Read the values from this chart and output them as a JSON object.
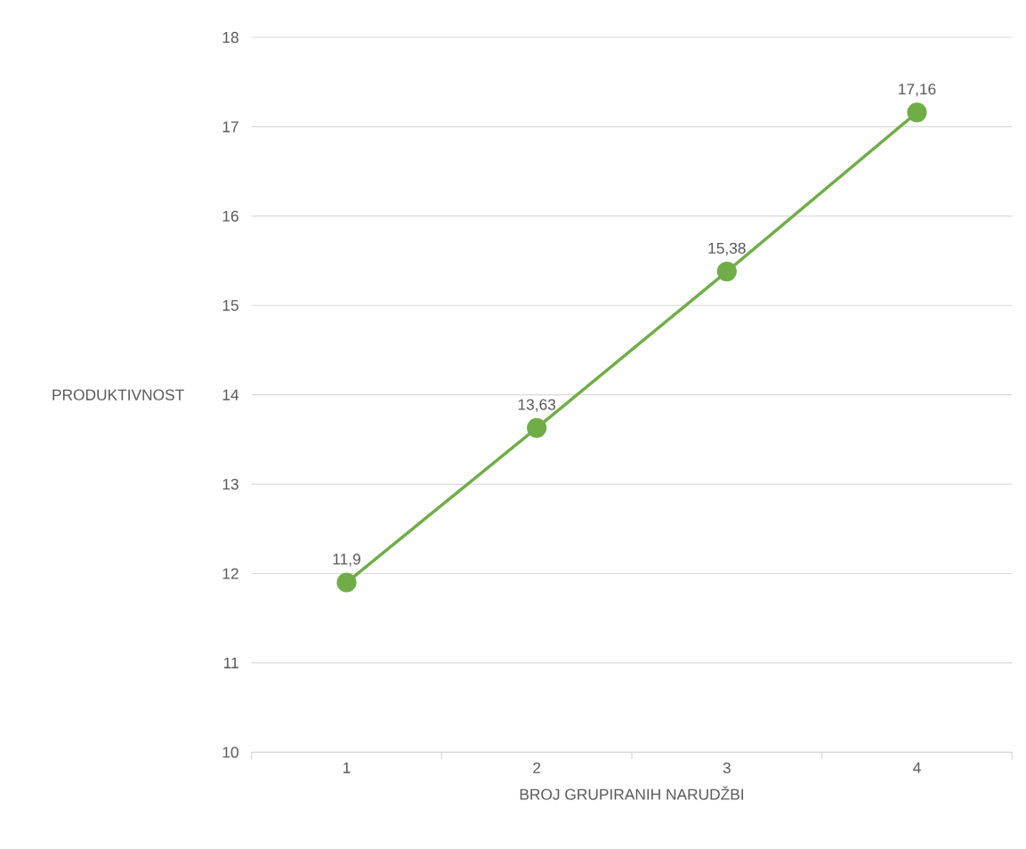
{
  "chart_data": {
    "type": "line",
    "xlabel": "BROJ GRUPIRANIH NARUDŽBI",
    "ylabel": "PRODUKTIVNOST",
    "categories": [
      "1",
      "2",
      "3",
      "4"
    ],
    "values": [
      11.9,
      13.63,
      15.38,
      17.16
    ],
    "value_labels": [
      "11,9",
      "13,63",
      "15,38",
      "17,16"
    ],
    "color": "#70ad47",
    "marker": "circle",
    "line_style": "solid",
    "ylim": [
      10,
      18
    ],
    "yticks": [
      10,
      11,
      12,
      13,
      14,
      15,
      16,
      17,
      18
    ],
    "grid": "y"
  }
}
